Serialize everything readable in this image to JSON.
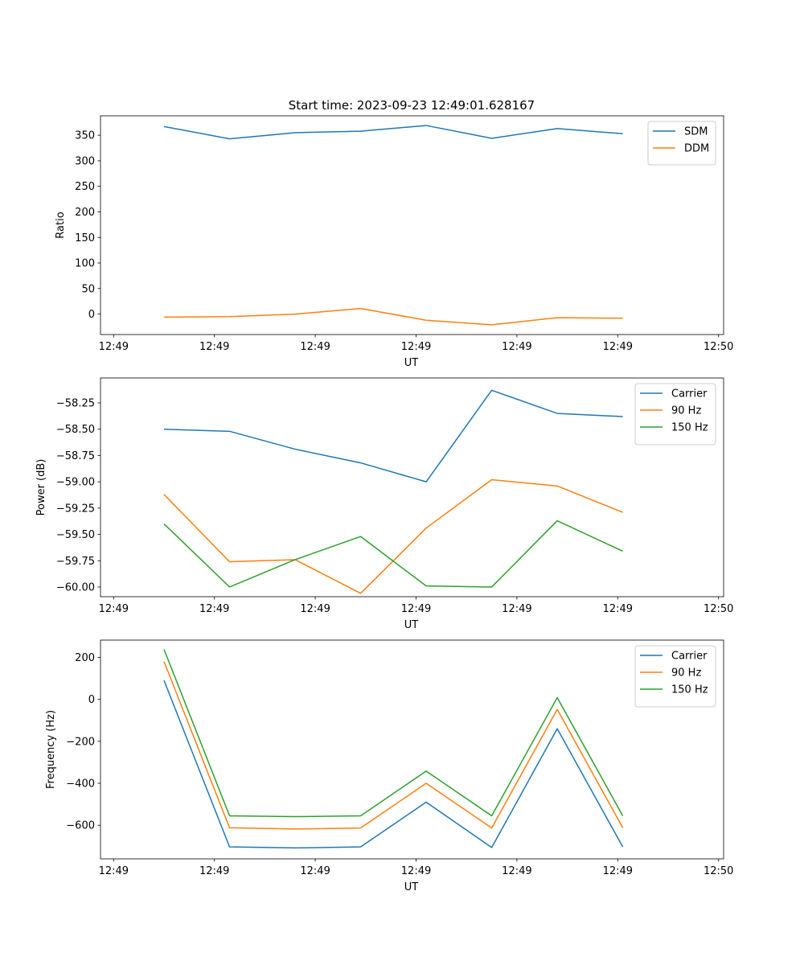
{
  "title": "Start time: 2023-09-23 12:49:01.628167",
  "colors": {
    "c1": "#1f77b4",
    "c2": "#ff7f0e",
    "c3": "#2ca02c",
    "axis": "#000000",
    "legend_border": "#cccccc"
  },
  "chart_data": [
    {
      "type": "line",
      "xlabel": "UT",
      "ylabel": "Ratio",
      "x_ticks": [
        "12:49",
        "12:49",
        "12:49",
        "12:49",
        "12:49",
        "12:49",
        "12:50"
      ],
      "y_ticks": [
        0,
        50,
        100,
        150,
        200,
        250,
        300,
        350
      ],
      "y_tick_labels": [
        "0",
        "50",
        "100",
        "150",
        "200",
        "250",
        "300",
        "350"
      ],
      "xlim": [
        -0.13,
        6.05
      ],
      "ylim": [
        -40,
        388
      ],
      "x": [
        0.5,
        1.15,
        1.8,
        2.45,
        3.1,
        3.75,
        4.4,
        5.05
      ],
      "legend_position": "upper right",
      "series": [
        {
          "name": "SDM",
          "color": "#1f77b4",
          "values": [
            367,
            343,
            355,
            358,
            369,
            344,
            363,
            353
          ]
        },
        {
          "name": "DDM",
          "color": "#ff7f0e",
          "values": [
            -6,
            -5,
            0,
            11,
            -12,
            -21,
            -7,
            -8
          ]
        }
      ]
    },
    {
      "type": "line",
      "xlabel": "UT",
      "ylabel": "Power (dB)",
      "x_ticks": [
        "12:49",
        "12:49",
        "12:49",
        "12:49",
        "12:49",
        "12:49",
        "12:50"
      ],
      "y_ticks": [
        -60.0,
        -59.75,
        -59.5,
        -59.25,
        -59.0,
        -58.75,
        -58.5,
        -58.25
      ],
      "y_tick_labels": [
        "−60.00",
        "−59.75",
        "−59.50",
        "−59.25",
        "−59.00",
        "−58.75",
        "−58.50",
        "−58.25"
      ],
      "xlim": [
        -0.13,
        6.05
      ],
      "ylim": [
        -60.092,
        -58.013
      ],
      "x": [
        0.5,
        1.15,
        1.8,
        2.45,
        3.1,
        3.75,
        4.4,
        5.05
      ],
      "legend_position": "upper right",
      "series": [
        {
          "name": "Carrier",
          "color": "#1f77b4",
          "values": [
            -58.5,
            -58.52,
            -58.69,
            -58.82,
            -59.0,
            -58.13,
            -58.35,
            -58.38
          ]
        },
        {
          "name": "90 Hz",
          "color": "#ff7f0e",
          "values": [
            -59.12,
            -59.76,
            -59.74,
            -60.06,
            -59.44,
            -58.98,
            -59.04,
            -59.29
          ]
        },
        {
          "name": "150 Hz",
          "color": "#2ca02c",
          "values": [
            -59.4,
            -60.0,
            -59.74,
            -59.52,
            -59.99,
            -60.0,
            -59.37,
            -59.66
          ]
        }
      ]
    },
    {
      "type": "line",
      "xlabel": "UT",
      "ylabel": "Frequency (Hz)",
      "x_ticks": [
        "12:49",
        "12:49",
        "12:49",
        "12:49",
        "12:49",
        "12:49",
        "12:50"
      ],
      "y_ticks": [
        -600,
        -400,
        -200,
        0,
        200
      ],
      "y_tick_labels": [
        "−600",
        "−400",
        "−200",
        "0",
        "200"
      ],
      "xlim": [
        -0.13,
        6.05
      ],
      "ylim": [
        -760,
        282
      ],
      "x": [
        0.5,
        1.15,
        1.8,
        2.45,
        3.1,
        3.75,
        4.4,
        5.05
      ],
      "legend_position": "upper right",
      "series": [
        {
          "name": "Carrier",
          "color": "#1f77b4",
          "values": [
            90,
            -703,
            -708,
            -703,
            -490,
            -706,
            -140,
            -703
          ]
        },
        {
          "name": "90 Hz",
          "color": "#ff7f0e",
          "values": [
            180,
            -612,
            -618,
            -613,
            -400,
            -613,
            -48,
            -612
          ]
        },
        {
          "name": "150 Hz",
          "color": "#2ca02c",
          "values": [
            238,
            -555,
            -559,
            -555,
            -342,
            -555,
            8,
            -555
          ]
        }
      ]
    }
  ]
}
